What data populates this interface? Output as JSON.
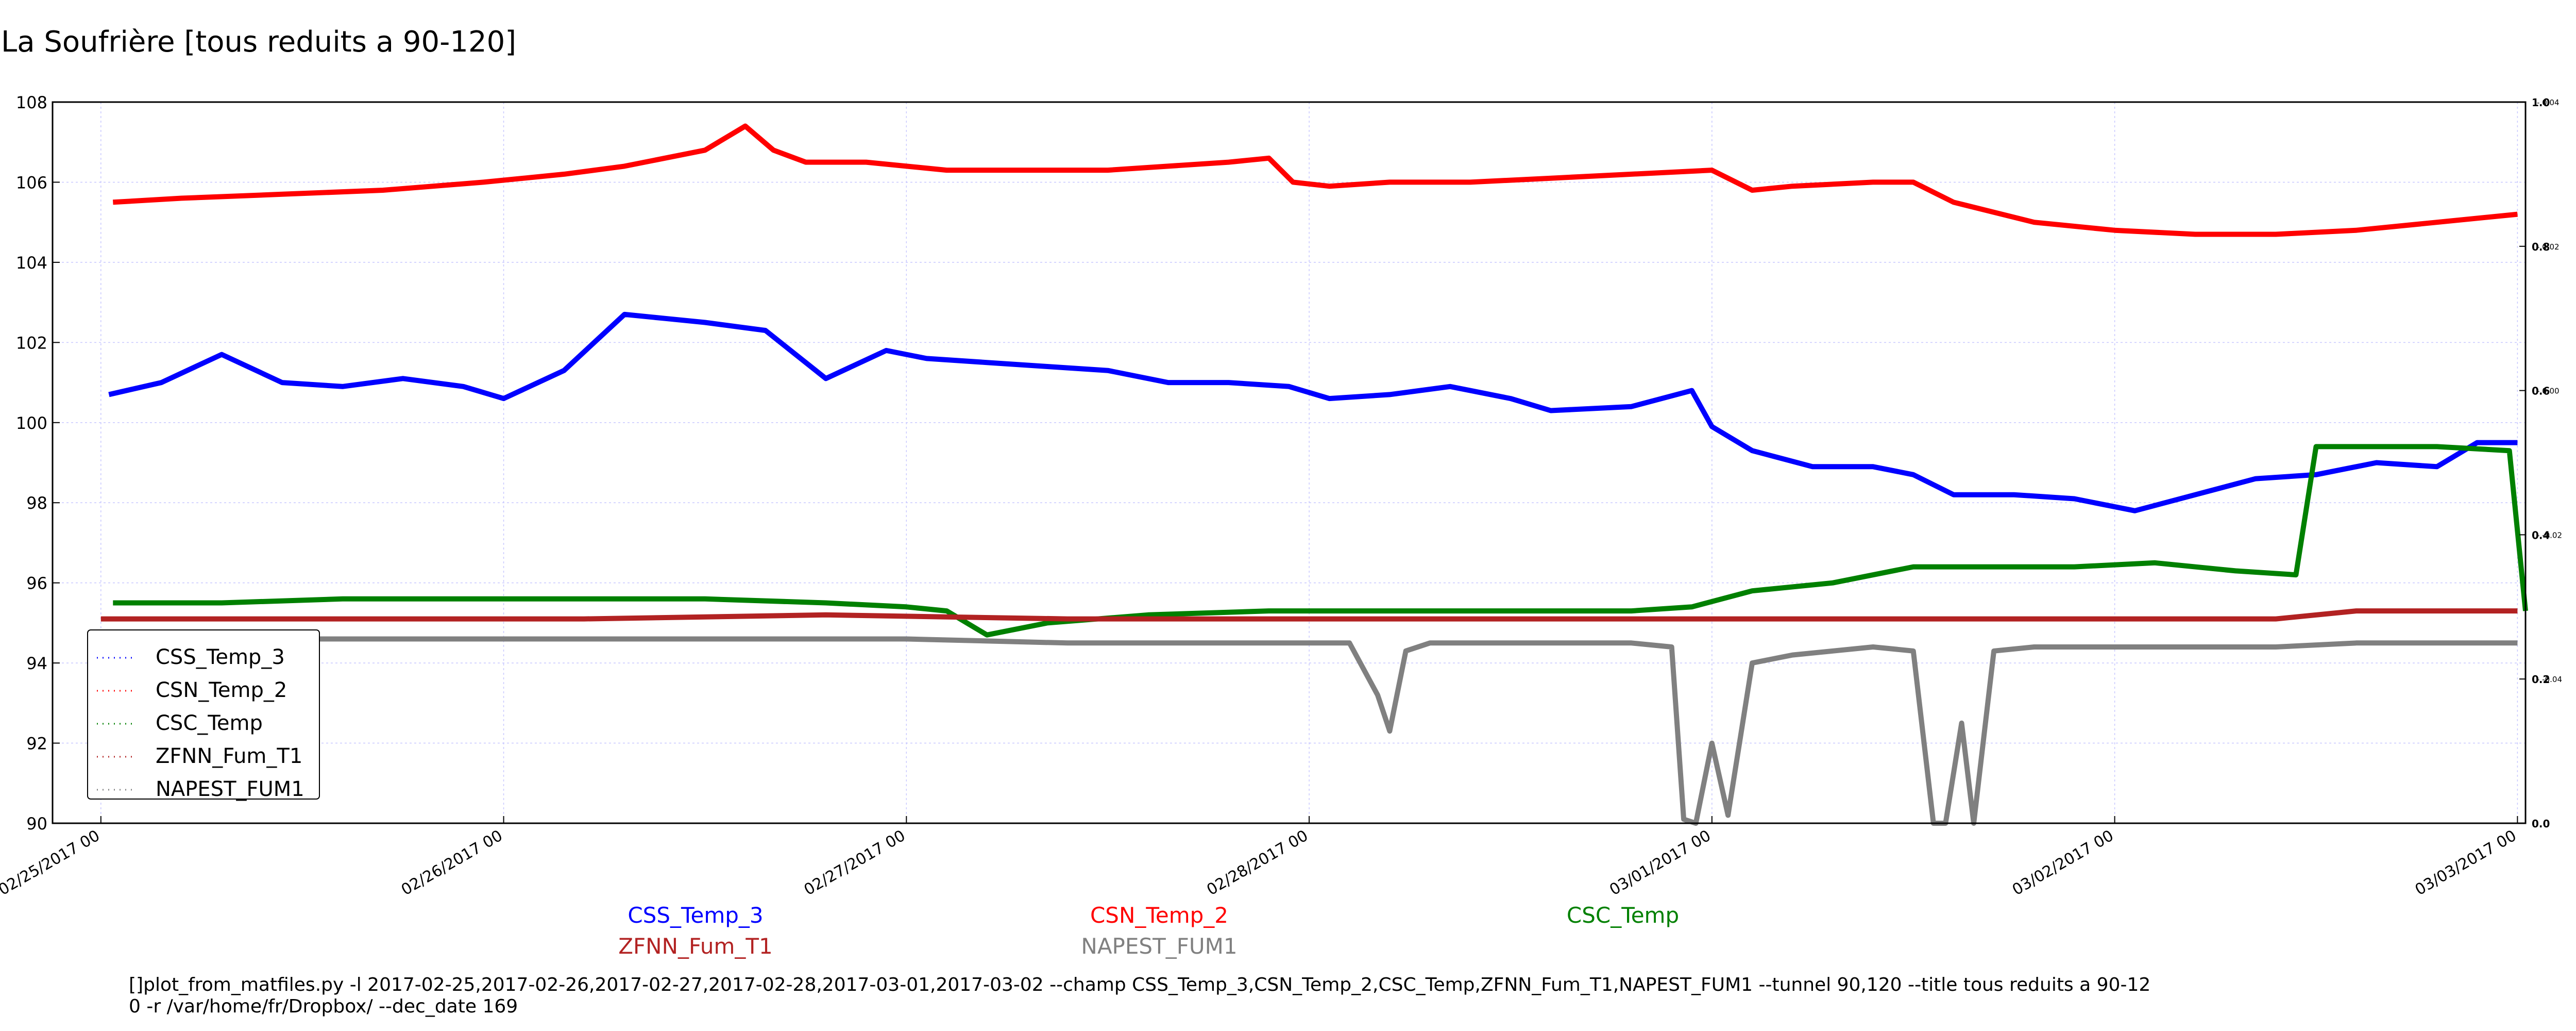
{
  "chart_data": {
    "type": "line",
    "title": "La Soufrière [tous reduits a 90-120]",
    "xlabel": "",
    "ylabel": "",
    "x_ticks": [
      "02/25/2017 00",
      "02/26/2017 00",
      "02/27/2017 00",
      "02/28/2017 00",
      "03/01/2017 00",
      "03/02/2017 00",
      "03/03/2017 00"
    ],
    "x_range": [
      -0.12,
      6.02
    ],
    "ylim": [
      90,
      108
    ],
    "y_ticks": [
      90,
      92,
      94,
      96,
      98,
      100,
      102,
      104,
      106,
      108
    ],
    "y2_ticks": [
      "0.0",
      "0.2",
      "0.4",
      "0.6",
      "0.8",
      "1.0"
    ],
    "y2_minor_ticks": [
      "-0.04",
      "-0.02",
      "0.00",
      "0.02",
      "0.04"
    ],
    "grid": true,
    "legend_position": "lower-left",
    "series": [
      {
        "name": "CSS_Temp_3",
        "color": "#0000ff",
        "x": [
          0.02,
          0.15,
          0.3,
          0.45,
          0.6,
          0.75,
          0.9,
          1.0,
          1.15,
          1.3,
          1.4,
          1.5,
          1.65,
          1.8,
          1.95,
          2.05,
          2.2,
          2.35,
          2.5,
          2.65,
          2.8,
          2.95,
          3.05,
          3.2,
          3.35,
          3.5,
          3.6,
          3.8,
          3.95,
          4.0,
          4.1,
          4.25,
          4.4,
          4.5,
          4.6,
          4.75,
          4.9,
          5.05,
          5.2,
          5.35,
          5.5,
          5.65,
          5.8,
          5.9,
          6.0
        ],
        "y": [
          100.7,
          101.0,
          101.7,
          101.0,
          100.9,
          101.1,
          100.9,
          100.6,
          101.3,
          102.7,
          102.6,
          102.5,
          102.3,
          101.1,
          101.8,
          101.6,
          101.5,
          101.4,
          101.3,
          101.0,
          101.0,
          100.9,
          100.6,
          100.7,
          100.9,
          100.6,
          100.3,
          100.4,
          100.8,
          99.9,
          99.3,
          98.9,
          98.9,
          98.7,
          98.2,
          98.2,
          98.1,
          97.8,
          98.2,
          98.6,
          98.7,
          99.0,
          98.9,
          99.5,
          99.5
        ]
      },
      {
        "name": "CSN_Temp_2",
        "color": "#ff0000",
        "x": [
          0.03,
          0.2,
          0.45,
          0.7,
          0.95,
          1.15,
          1.3,
          1.5,
          1.6,
          1.67,
          1.75,
          1.9,
          2.1,
          2.3,
          2.5,
          2.8,
          2.9,
          2.96,
          3.05,
          3.2,
          3.4,
          3.6,
          3.8,
          4.0,
          4.1,
          4.2,
          4.4,
          4.5,
          4.6,
          4.8,
          5.0,
          5.2,
          5.4,
          5.6,
          5.8,
          6.0
        ],
        "y": [
          105.5,
          105.6,
          105.7,
          105.8,
          106.0,
          106.2,
          106.4,
          106.8,
          107.4,
          106.8,
          106.5,
          106.5,
          106.3,
          106.3,
          106.3,
          106.5,
          106.6,
          106.0,
          105.9,
          106.0,
          106.0,
          106.1,
          106.2,
          106.3,
          105.8,
          105.9,
          106.0,
          106.0,
          105.5,
          105.0,
          104.8,
          104.7,
          104.7,
          104.8,
          105.0,
          105.2
        ]
      },
      {
        "name": "CSC_Temp",
        "color": "#008000",
        "x": [
          0.03,
          0.3,
          0.6,
          0.9,
          1.2,
          1.5,
          1.8,
          2.0,
          2.1,
          2.2,
          2.35,
          2.6,
          2.9,
          3.2,
          3.5,
          3.8,
          3.95,
          4.1,
          4.3,
          4.5,
          4.7,
          4.9,
          5.1,
          5.3,
          5.45,
          5.5,
          5.6,
          5.8,
          5.98,
          6.02
        ],
        "y": [
          95.5,
          95.5,
          95.6,
          95.6,
          95.6,
          95.6,
          95.5,
          95.4,
          95.3,
          94.7,
          95.0,
          95.2,
          95.3,
          95.3,
          95.3,
          95.3,
          95.4,
          95.8,
          96.0,
          96.4,
          96.4,
          96.4,
          96.5,
          96.3,
          96.2,
          99.4,
          99.4,
          99.4,
          99.3,
          95.3
        ]
      },
      {
        "name": "ZFNN_Fum_T1",
        "color": "#b22222",
        "x": [
          0.0,
          0.6,
          1.2,
          1.8,
          2.4,
          3.0,
          3.6,
          4.2,
          4.8,
          5.4,
          5.6,
          6.0
        ],
        "y": [
          95.1,
          95.1,
          95.1,
          95.2,
          95.1,
          95.1,
          95.1,
          95.1,
          95.1,
          95.1,
          95.3,
          95.3
        ]
      },
      {
        "name": "NAPEST_FUM1",
        "color": "#808080",
        "x": [
          0.0,
          0.4,
          0.8,
          1.2,
          1.6,
          2.0,
          2.4,
          2.8,
          3.1,
          3.17,
          3.2,
          3.24,
          3.3,
          3.6,
          3.8,
          3.9,
          3.93,
          3.96,
          4.0,
          4.04,
          4.1,
          4.2,
          4.3,
          4.4,
          4.5,
          4.55,
          4.58,
          4.62,
          4.65,
          4.7,
          4.8,
          5.0,
          5.2,
          5.4,
          5.6,
          5.8,
          6.0
        ],
        "y": [
          94.6,
          94.6,
          94.6,
          94.6,
          94.6,
          94.6,
          94.5,
          94.5,
          94.5,
          93.2,
          92.3,
          94.3,
          94.5,
          94.5,
          94.5,
          94.4,
          90.1,
          90.0,
          92.0,
          90.2,
          94.0,
          94.2,
          94.3,
          94.4,
          94.3,
          90.0,
          90.0,
          92.5,
          90.0,
          94.3,
          94.4,
          94.4,
          94.4,
          94.4,
          94.5,
          94.5,
          94.5
        ]
      }
    ]
  },
  "footer": {
    "command_line": "[]plot_from_matfiles.py -l 2017-02-25,2017-02-26,2017-02-27,2017-02-28,2017-03-01,2017-03-02 --champ CSS_Temp_3,CSN_Temp_2,CSC_Temp,ZFNN_Fum_T1,NAPEST_FUM1 --tunnel 90,120 --title tous reduits a 90-12\n0 -r /var/home/fr/Dropbox/ --dec_date 169"
  }
}
